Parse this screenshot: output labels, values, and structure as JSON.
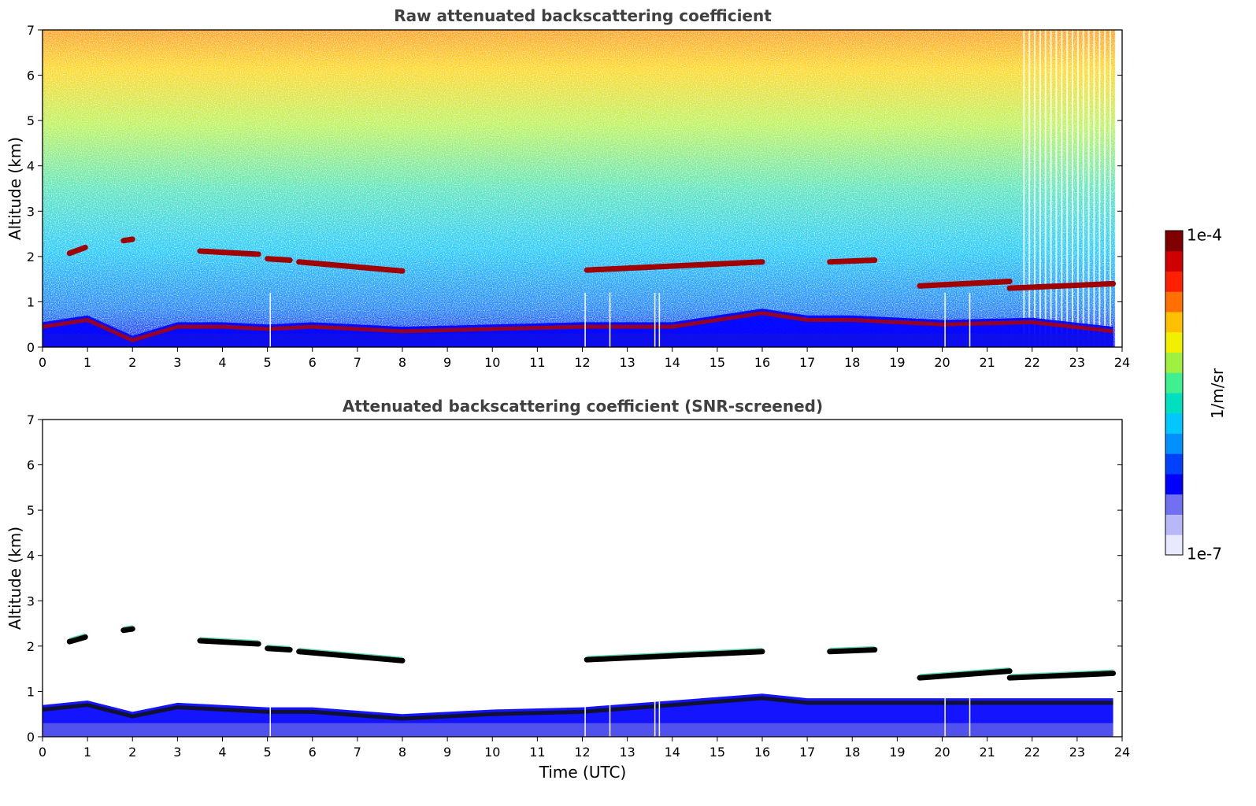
{
  "chart_data": [
    {
      "type": "heatmap",
      "title": "Raw attenuated backscattering coefficient",
      "xlabel": "",
      "ylabel": "Altitude (km)",
      "xlim": [
        0,
        24
      ],
      "ylim": [
        0,
        7
      ],
      "x_ticks": [
        "0",
        "1",
        "2",
        "3",
        "4",
        "5",
        "6",
        "7",
        "8",
        "9",
        "10",
        "11",
        "12",
        "13",
        "14",
        "15",
        "16",
        "17",
        "18",
        "19",
        "20",
        "21",
        "22",
        "23",
        "24"
      ],
      "y_ticks": [
        "0",
        "1",
        "2",
        "3",
        "4",
        "5",
        "6",
        "7"
      ],
      "cloud_layers": [
        {
          "name": "cloud-layer-0.6-0.9km",
          "t": [
            0.6,
            0.95
          ],
          "alt": [
            2.07,
            2.2
          ]
        },
        {
          "name": "cloud-layer-1.8-2.0km",
          "t": [
            1.8,
            2.0
          ],
          "alt": [
            2.35,
            2.38
          ]
        },
        {
          "name": "cloud-layer-3.5-4.8km",
          "t": [
            3.5,
            4.8
          ],
          "alt": [
            2.12,
            2.05
          ]
        },
        {
          "name": "cloud-layer-5.0-5.5km",
          "t": [
            5.0,
            5.5
          ],
          "alt": [
            1.95,
            1.92
          ]
        },
        {
          "name": "cloud-layer-5.7-8.0km",
          "t": [
            5.7,
            8.0
          ],
          "alt": [
            1.88,
            1.68
          ]
        },
        {
          "name": "cloud-layer-12.1-16.0km",
          "t": [
            12.1,
            16.0
          ],
          "alt": [
            1.7,
            1.88
          ]
        },
        {
          "name": "cloud-layer-17.5-18.5km",
          "t": [
            17.5,
            18.5
          ],
          "alt": [
            1.88,
            1.92
          ]
        },
        {
          "name": "cloud-layer-19.5-21.5km",
          "t": [
            19.5,
            21.5
          ],
          "alt": [
            1.35,
            1.45
          ]
        },
        {
          "name": "cloud-layer-21.5-23.8km",
          "t": [
            21.5,
            23.8
          ],
          "alt": [
            1.3,
            1.4
          ]
        }
      ],
      "boundary_layer": [
        {
          "t": 0,
          "alt": 0.55
        },
        {
          "t": 1,
          "alt": 0.7
        },
        {
          "t": 2,
          "alt": 0.25
        },
        {
          "t": 3,
          "alt": 0.55
        },
        {
          "t": 4,
          "alt": 0.55
        },
        {
          "t": 5,
          "alt": 0.5
        },
        {
          "t": 6,
          "alt": 0.55
        },
        {
          "t": 8,
          "alt": 0.45
        },
        {
          "t": 10,
          "alt": 0.5
        },
        {
          "t": 12,
          "alt": 0.55
        },
        {
          "t": 14,
          "alt": 0.55
        },
        {
          "t": 16,
          "alt": 0.85
        },
        {
          "t": 17,
          "alt": 0.7
        },
        {
          "t": 18,
          "alt": 0.7
        },
        {
          "t": 20,
          "alt": 0.6
        },
        {
          "t": 22,
          "alt": 0.65
        },
        {
          "t": 23.8,
          "alt": 0.45
        }
      ]
    },
    {
      "type": "heatmap",
      "title": "Attenuated backscattering coefficient (SNR-screened)",
      "xlabel": "Time (UTC)",
      "ylabel": "Altitude (km)",
      "xlim": [
        0,
        24
      ],
      "ylim": [
        0,
        7
      ],
      "x_ticks": [
        "0",
        "1",
        "2",
        "3",
        "4",
        "5",
        "6",
        "7",
        "8",
        "9",
        "10",
        "11",
        "12",
        "13",
        "14",
        "15",
        "16",
        "17",
        "18",
        "19",
        "20",
        "21",
        "22",
        "23",
        "24"
      ],
      "y_ticks": [
        "0",
        "1",
        "2",
        "3",
        "4",
        "5",
        "6",
        "7"
      ],
      "cloud_layers": [
        {
          "name": "cloud-layer-0.6-0.9km",
          "t": [
            0.6,
            0.95
          ],
          "alt": [
            2.1,
            2.2
          ]
        },
        {
          "name": "cloud-layer-1.8-2.0km",
          "t": [
            1.8,
            2.0
          ],
          "alt": [
            2.35,
            2.38
          ]
        },
        {
          "name": "cloud-layer-3.5-4.8km",
          "t": [
            3.5,
            4.8
          ],
          "alt": [
            2.12,
            2.05
          ]
        },
        {
          "name": "cloud-layer-5.0-5.5km",
          "t": [
            5.0,
            5.5
          ],
          "alt": [
            1.95,
            1.92
          ]
        },
        {
          "name": "cloud-layer-5.7-8.0km",
          "t": [
            5.7,
            8.0
          ],
          "alt": [
            1.88,
            1.68
          ]
        },
        {
          "name": "cloud-layer-12.1-16.0km",
          "t": [
            12.1,
            16.0
          ],
          "alt": [
            1.7,
            1.88
          ]
        },
        {
          "name": "cloud-layer-17.5-18.5km",
          "t": [
            17.5,
            18.5
          ],
          "alt": [
            1.88,
            1.92
          ]
        },
        {
          "name": "cloud-layer-19.5-21.5km",
          "t": [
            19.5,
            21.5
          ],
          "alt": [
            1.3,
            1.45
          ]
        },
        {
          "name": "cloud-layer-21.5-23.8km",
          "t": [
            21.5,
            23.8
          ],
          "alt": [
            1.3,
            1.4
          ]
        }
      ],
      "boundary_layer": [
        {
          "t": 0,
          "alt": 0.7
        },
        {
          "t": 1,
          "alt": 0.8
        },
        {
          "t": 2,
          "alt": 0.55
        },
        {
          "t": 3,
          "alt": 0.75
        },
        {
          "t": 4,
          "alt": 0.7
        },
        {
          "t": 5,
          "alt": 0.65
        },
        {
          "t": 6,
          "alt": 0.65
        },
        {
          "t": 8,
          "alt": 0.5
        },
        {
          "t": 10,
          "alt": 0.6
        },
        {
          "t": 12,
          "alt": 0.65
        },
        {
          "t": 14,
          "alt": 0.8
        },
        {
          "t": 16,
          "alt": 0.95
        },
        {
          "t": 17,
          "alt": 0.85
        },
        {
          "t": 18,
          "alt": 0.85
        },
        {
          "t": 20,
          "alt": 0.85
        },
        {
          "t": 22,
          "alt": 0.85
        },
        {
          "t": 23.8,
          "alt": 0.85
        }
      ]
    }
  ],
  "colorbar": {
    "label": "1/m/sr",
    "max_label": "1e-4",
    "min_label": "1e-7",
    "min": 1e-07,
    "max": 0.0001,
    "colors": [
      "#e8e8ff",
      "#b8b8f8",
      "#7070f0",
      "#0000ff",
      "#0040ff",
      "#0090ff",
      "#00c8ff",
      "#00e0c0",
      "#40f090",
      "#a0f040",
      "#f0f000",
      "#ffc000",
      "#ff7000",
      "#ff2000",
      "#d00000",
      "#800000"
    ]
  }
}
